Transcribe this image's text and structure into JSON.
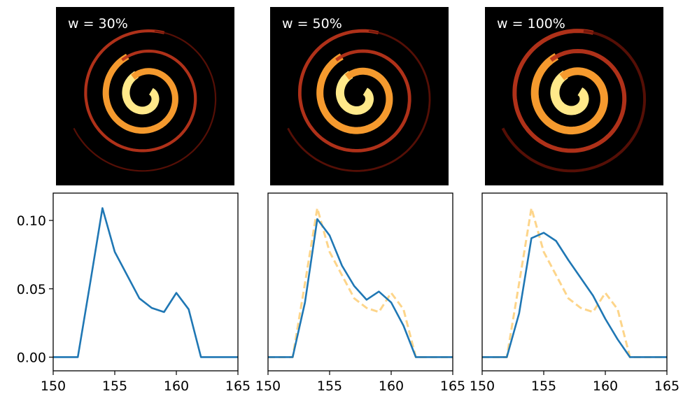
{
  "images": [
    {
      "label": "w = 30%"
    },
    {
      "label": "w = 50%"
    },
    {
      "label": "w = 100%"
    }
  ],
  "chart_data": [
    {
      "type": "line",
      "x": [
        150,
        151,
        152,
        153,
        154,
        155,
        156,
        157,
        158,
        159,
        160,
        161,
        162,
        163,
        164,
        165
      ],
      "series": [
        {
          "color": "#1f77b4",
          "dashed": false,
          "values": [
            0,
            0,
            0,
            0.054,
            0.109,
            0.077,
            0.06,
            0.043,
            0.036,
            0.033,
            0.047,
            0.035,
            0,
            0,
            0,
            0
          ]
        }
      ],
      "xlim": [
        150,
        165
      ],
      "ylim": [
        -0.01,
        0.12
      ],
      "xticks": [
        150,
        155,
        160,
        165
      ],
      "yticks": [
        {
          "value": 0,
          "label": "0.00"
        },
        {
          "value": 0.05,
          "label": "0.05"
        },
        {
          "value": 0.1,
          "label": "0.10"
        }
      ]
    },
    {
      "type": "line",
      "x": [
        150,
        151,
        152,
        153,
        154,
        155,
        156,
        157,
        158,
        159,
        160,
        161,
        162,
        163,
        164,
        165
      ],
      "series": [
        {
          "color": "#fdd58a",
          "dashed": true,
          "values": [
            0,
            0,
            0,
            0.054,
            0.109,
            0.077,
            0.06,
            0.043,
            0.036,
            0.033,
            0.047,
            0.035,
            0,
            0,
            0,
            0
          ]
        },
        {
          "color": "#1f77b4",
          "dashed": false,
          "values": [
            0,
            0,
            0,
            0.04,
            0.101,
            0.089,
            0.067,
            0.052,
            0.042,
            0.048,
            0.04,
            0.023,
            0,
            0,
            0,
            0
          ]
        }
      ],
      "xlim": [
        150,
        165
      ],
      "ylim": [
        -0.01,
        0.12
      ],
      "xticks": [
        150,
        155,
        160,
        165
      ]
    },
    {
      "type": "line",
      "x": [
        150,
        151,
        152,
        153,
        154,
        155,
        156,
        157,
        158,
        159,
        160,
        161,
        162,
        163,
        164,
        165
      ],
      "series": [
        {
          "color": "#fdd58a",
          "dashed": true,
          "values": [
            0,
            0,
            0,
            0.054,
            0.109,
            0.077,
            0.06,
            0.043,
            0.036,
            0.033,
            0.047,
            0.035,
            0,
            0,
            0,
            0
          ]
        },
        {
          "color": "#1f77b4",
          "dashed": false,
          "values": [
            0,
            0,
            0,
            0.032,
            0.087,
            0.091,
            0.085,
            0.071,
            0.058,
            0.045,
            0.028,
            0.013,
            0,
            0,
            0,
            0
          ]
        }
      ],
      "xlim": [
        150,
        165
      ],
      "ylim": [
        -0.01,
        0.12
      ],
      "xticks": [
        150,
        155,
        160,
        165
      ]
    }
  ]
}
